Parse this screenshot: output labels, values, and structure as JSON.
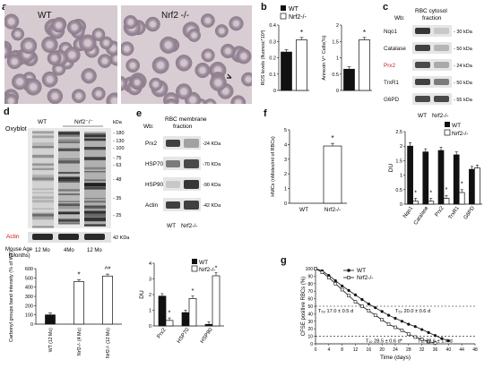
{
  "panel_labels": [
    "a",
    "b",
    "c",
    "d",
    "e",
    "f",
    "g"
  ],
  "panel_a": {
    "labels": [
      "WT",
      "Nrf2 -/-"
    ]
  },
  "panel_b": {
    "legend": [
      "WT",
      "Nrf2-/-"
    ],
    "chart_data": [
      {
        "type": "bar",
        "ylabel": "ROS levels (fluoresc*10³)",
        "ylim": [
          0,
          0.4
        ],
        "yticks": [
          "0",
          "0.1",
          "0.2",
          "0.3",
          "0.4"
        ],
        "categories": [
          "WT",
          "Nrf2-/-"
        ],
        "values": [
          0.235,
          0.31
        ],
        "sig": "*"
      },
      {
        "type": "bar",
        "ylabel": "Annexin V⁺ Cells(%)",
        "ylim": [
          0,
          2
        ],
        "yticks": [
          "0",
          "0.5",
          "1",
          "1.5",
          "2"
        ],
        "categories": [
          "WT",
          "Nrf2-/-"
        ],
        "values": [
          0.65,
          1.55
        ],
        "sig": "*"
      }
    ]
  },
  "panel_c": {
    "wb": "Wb:",
    "title": "RBC cytosol fraction",
    "rows": [
      {
        "name": "Nqo1",
        "kda": "30 kDa"
      },
      {
        "name": "Catalase",
        "kda": "50 kDa"
      },
      {
        "name": "Prx2",
        "kda": "24 kDa"
      },
      {
        "name": "TrxR1",
        "kda": "50 kDa"
      },
      {
        "name": "G6PD",
        "kda": "55 kDa"
      }
    ],
    "lanes": [
      "WT",
      "Nrf2-/-"
    ]
  },
  "panel_d": {
    "title": "Oxyblot",
    "groups": [
      "WT",
      "Nrf2⁻/⁻"
    ],
    "kda_head": "kDa",
    "markers": [
      "180",
      "130",
      "100",
      "75",
      "63",
      "48",
      "35",
      "25"
    ],
    "actin": "Actin",
    "actin_kda": "42 KDa",
    "age_label": "Mouse Age (Months)",
    "ages": [
      "12 Mo",
      "4Mo",
      "12 Mo"
    ]
  },
  "panel_d_chart": {
    "chart_data": {
      "type": "bar",
      "ylabel": "Carbonyl groups band intensity (% of WT)",
      "ylim": [
        0,
        600
      ],
      "yticks": [
        "0",
        "100",
        "200",
        "300",
        "400",
        "500",
        "600"
      ],
      "categories": [
        "WT (12 Mo)",
        "Nrf2-/- (4 Mo)",
        "Nrf2-/- (12 Mo)"
      ],
      "values": [
        100,
        460,
        520
      ],
      "sig": [
        "",
        "*",
        "^*"
      ]
    }
  },
  "panel_e": {
    "wb": "Wb:",
    "title": "RBC membrane fraction",
    "rows": [
      {
        "name": "Prx2",
        "kda": "24 KDa"
      },
      {
        "name": "HSP70",
        "kda": "70 KDa"
      },
      {
        "name": "HSP90",
        "kda": "90 KDa"
      },
      {
        "name": "Actin",
        "kda": "42 KDa"
      }
    ],
    "lanes": [
      "WT",
      "Nrf2-/-"
    ]
  },
  "panel_e_chart": {
    "legend": [
      "WT",
      "Nrf2-/-"
    ],
    "chart_data": {
      "type": "bar",
      "ylabel": "DU",
      "ylim": [
        0,
        4
      ],
      "yticks": [
        "0",
        "1",
        "2",
        "3",
        "4"
      ],
      "categories": [
        "Prx2",
        "HSP70",
        "HSP90"
      ],
      "series": [
        {
          "name": "WT",
          "values": [
            1.9,
            0.85,
            0.1
          ]
        },
        {
          "name": "Nrf2-/-",
          "values": [
            0.35,
            1.75,
            3.2
          ]
        }
      ],
      "sig": [
        "*",
        "*",
        "*"
      ]
    }
  },
  "panel_f": {
    "chart_data": {
      "type": "bar",
      "ylabel": "HMCs (nMoles/ml of RBCs)",
      "ylim": [
        0,
        5
      ],
      "yticks": [
        "0",
        "1",
        "2",
        "3",
        "4",
        "5"
      ],
      "categories": [
        "WT",
        "Nrf2-/-"
      ],
      "values": [
        0,
        3.9
      ],
      "sig": "*"
    }
  },
  "panel_f_chart": {
    "legend": [
      "WT",
      "Nrf2-/-"
    ],
    "chart_data": {
      "type": "bar",
      "ylabel": "DU",
      "ylim": [
        0,
        2.5
      ],
      "yticks": [
        "0",
        "0.5",
        "1",
        "1.5",
        "2",
        "2.5"
      ],
      "categories": [
        "Nqo1",
        "Catalase",
        "Prx2",
        "TrxR1",
        "G6PD"
      ],
      "series": [
        {
          "name": "WT",
          "values": [
            2.0,
            1.8,
            1.85,
            1.7,
            1.2
          ]
        },
        {
          "name": "Nrf2-/-",
          "values": [
            0.1,
            0.1,
            0.2,
            0.4,
            1.25
          ]
        }
      ],
      "sig": [
        "*",
        "*",
        "*",
        "*",
        ""
      ]
    }
  },
  "panel_g": {
    "legend": [
      "WT",
      "Nrf2-/-"
    ],
    "chart_data": {
      "type": "line",
      "xlabel": "Time (days)",
      "ylabel": "CFSE positive RBCs (%)",
      "xlim": [
        0,
        48
      ],
      "ylim": [
        0,
        100
      ],
      "xticks": [
        "0",
        "4",
        "8",
        "12",
        "16",
        "20",
        "24",
        "28",
        "32",
        "36",
        "40",
        "44",
        "48"
      ],
      "yticks": [
        "0",
        "10",
        "20",
        "30",
        "40",
        "50",
        "60",
        "70",
        "80",
        "90",
        "100"
      ],
      "series": [
        {
          "name": "WT",
          "x": [
            0,
            2,
            4,
            6,
            8,
            10,
            12,
            14,
            16,
            18,
            20,
            22,
            24,
            26,
            28,
            30,
            32,
            34,
            36,
            38,
            40
          ],
          "y": [
            100,
            97,
            91,
            84,
            77,
            71,
            65,
            59,
            53,
            48,
            43,
            38,
            34,
            30,
            26,
            23,
            19,
            15,
            11,
            7,
            4
          ]
        },
        {
          "name": "Nrf2-/-",
          "x": [
            0,
            2,
            4,
            6,
            8,
            10,
            12,
            14,
            16,
            18,
            20,
            22,
            24,
            26,
            28,
            30,
            32,
            34,
            36
          ],
          "y": [
            100,
            95,
            88,
            80,
            72,
            64,
            56,
            50,
            44,
            38,
            32,
            26,
            22,
            18,
            13,
            9,
            6,
            3,
            1
          ]
        }
      ],
      "annotations": [
        "T₅₀ 17.0 ± 0.5 d",
        "T₅₀ 20.0 ± 0.6 d",
        "T₁₀ 28.5 ± 0.6 d*",
        "T₁₀ 32.6 ± 1.4 d"
      ]
    }
  }
}
